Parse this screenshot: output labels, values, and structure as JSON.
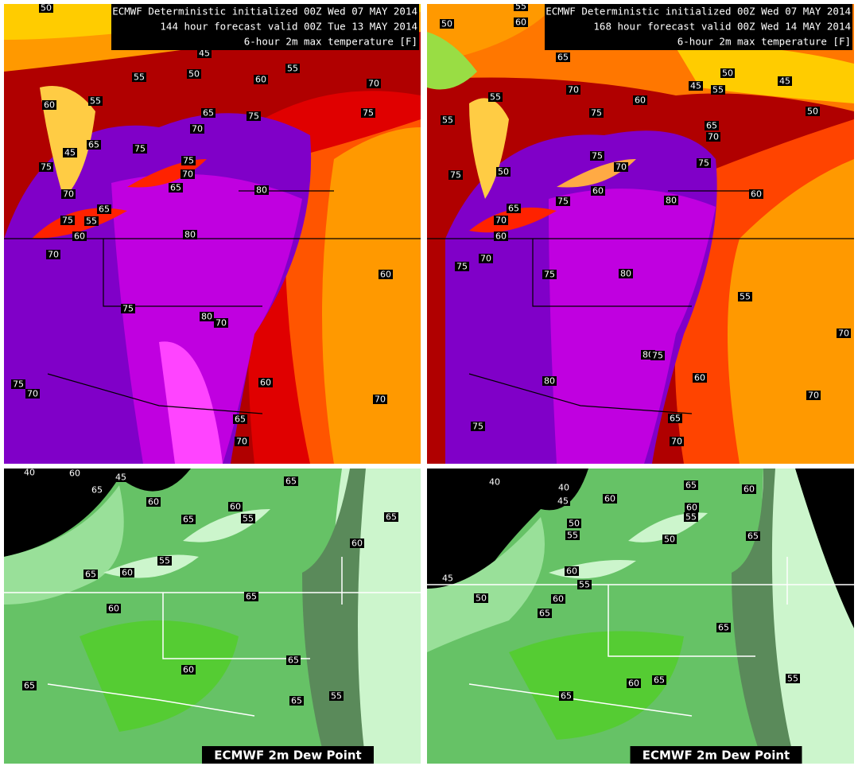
{
  "panels": [
    {
      "header": [
        "ECMWF Deterministic initialized 00Z Wed 07 MAY 2014",
        "144 hour forecast valid 00Z Tue 13 MAY 2014",
        "6-hour 2m max temperature [F]"
      ],
      "contour_labels": [
        "50",
        "45",
        "50",
        "55",
        "55",
        "60",
        "70",
        "55",
        "60",
        "65",
        "75",
        "75",
        "70",
        "75",
        "45",
        "65",
        "75",
        "70",
        "65",
        "75",
        "70",
        "80",
        "65",
        "75",
        "55",
        "60",
        "80",
        "70",
        "60",
        "75",
        "80",
        "70",
        "75",
        "70",
        "60",
        "70",
        "65",
        "70"
      ]
    },
    {
      "header": [
        "ECMWF Deterministic initialized 00Z Wed 07 MAY 2014",
        "168 hour forecast valid 00Z Wed 14 MAY 2014",
        "6-hour 2m max temperature [F]"
      ],
      "contour_labels": [
        "50",
        "55",
        "60",
        "65",
        "70",
        "60",
        "50",
        "45",
        "45",
        "55",
        "50",
        "55",
        "55",
        "75",
        "65",
        "70",
        "75",
        "75",
        "70",
        "60",
        "50",
        "75",
        "80",
        "60",
        "65",
        "75",
        "70",
        "60",
        "70",
        "75",
        "75",
        "80",
        "55",
        "80",
        "75",
        "80",
        "60",
        "70",
        "70",
        "65",
        "75",
        "70"
      ]
    },
    {
      "footer": "ECMWF 2m Dew Point",
      "contour_labels": [
        "40",
        "60",
        "45",
        "65",
        "65",
        "60",
        "60",
        "55",
        "65",
        "65",
        "60",
        "55",
        "65",
        "60",
        "60",
        "65",
        "65",
        "60",
        "65",
        "65",
        "55"
      ]
    },
    {
      "footer": "ECMWF 2m Dew Point",
      "contour_labels": [
        "40",
        "40",
        "45",
        "60",
        "65",
        "60",
        "60",
        "55",
        "50",
        "55",
        "65",
        "50",
        "60",
        "55",
        "60",
        "65",
        "45",
        "50",
        "65",
        "60",
        "65",
        "65",
        "55"
      ]
    }
  ]
}
